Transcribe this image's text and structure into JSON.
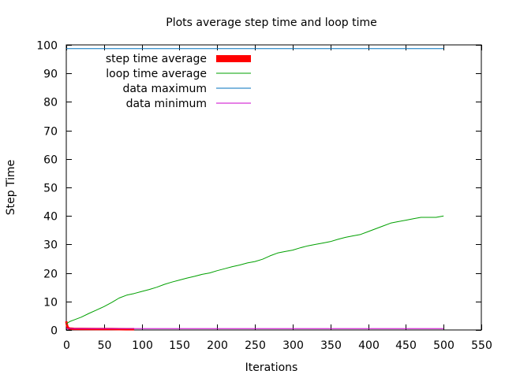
{
  "chart_data": {
    "type": "line",
    "title": "Plots average step time and loop time",
    "xlabel": "Iterations",
    "ylabel": "Step Time",
    "xlim": [
      0,
      550
    ],
    "ylim": [
      0,
      100
    ],
    "x_ticks": [
      0,
      50,
      100,
      150,
      200,
      250,
      300,
      350,
      400,
      450,
      500,
      550
    ],
    "y_ticks": [
      0,
      10,
      20,
      30,
      40,
      50,
      60,
      70,
      80,
      90,
      100
    ],
    "grid": false,
    "legend_position": "top-left",
    "series": [
      {
        "name": "step time average",
        "color": "#ff0000",
        "style": "thick",
        "x": [
          0,
          1,
          2,
          3,
          5,
          10,
          20,
          40,
          60,
          80,
          90
        ],
        "y": [
          3.0,
          1.5,
          0.9,
          0.6,
          0.5,
          0.4,
          0.35,
          0.3,
          0.3,
          0.25,
          0.25
        ]
      },
      {
        "name": "loop time average",
        "color": "#00a000",
        "style": "line",
        "x": [
          0,
          2,
          5,
          10,
          20,
          30,
          40,
          50,
          60,
          70,
          80,
          90,
          100,
          110,
          120,
          130,
          140,
          150,
          160,
          170,
          180,
          190,
          200,
          210,
          220,
          230,
          240,
          250,
          260,
          270,
          280,
          290,
          300,
          310,
          320,
          330,
          340,
          350,
          360,
          370,
          380,
          390,
          400,
          410,
          420,
          430,
          440,
          450,
          460,
          470,
          480,
          490,
          500
        ],
        "y": [
          2.0,
          2.5,
          3.0,
          3.5,
          4.5,
          5.8,
          7.0,
          8.2,
          9.6,
          11.2,
          12.2,
          12.8,
          13.5,
          14.2,
          15.0,
          16.0,
          16.8,
          17.5,
          18.2,
          18.8,
          19.5,
          20.0,
          20.8,
          21.5,
          22.2,
          22.8,
          23.5,
          24.0,
          24.8,
          26.0,
          27.0,
          27.5,
          28.0,
          28.8,
          29.5,
          30.0,
          30.5,
          31.0,
          31.8,
          32.5,
          33.0,
          33.5,
          34.5,
          35.5,
          36.5,
          37.5,
          38.0,
          38.5,
          39.0,
          39.5,
          39.5,
          39.5,
          40.0
        ]
      },
      {
        "name": "data maximum",
        "color": "#0072bd",
        "style": "line",
        "x": [
          0,
          500
        ],
        "y": [
          98.7,
          98.7
        ]
      },
      {
        "name": "data minimum",
        "color": "#cc00cc",
        "style": "line",
        "x": [
          0,
          500
        ],
        "y": [
          0.5,
          0.5
        ]
      }
    ]
  }
}
